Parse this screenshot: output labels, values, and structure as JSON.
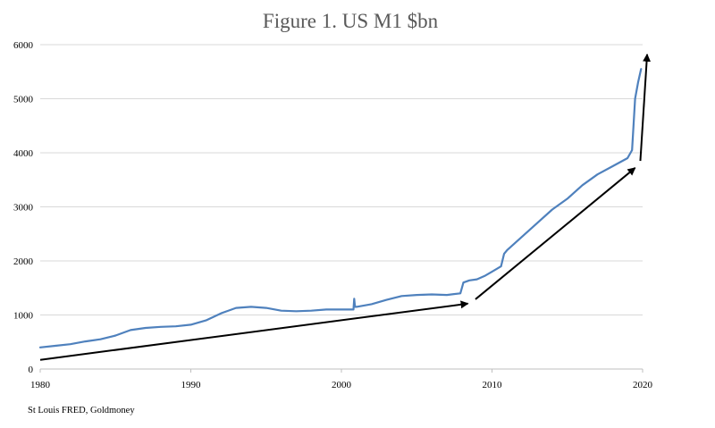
{
  "chart_data": {
    "type": "line",
    "title": "Figure 1. US M1 $bn",
    "source": "St Louis FRED, Goldmoney",
    "xlabel": "",
    "ylabel": "",
    "xlim": [
      1980,
      2020
    ],
    "ylim": [
      0,
      6000
    ],
    "x_ticks": [
      "1980",
      "1990",
      "2000",
      "2010",
      "2020"
    ],
    "y_ticks": [
      "0",
      "1000",
      "2000",
      "3000",
      "4000",
      "5000",
      "6000"
    ],
    "grid": true,
    "legend": "none",
    "series": [
      {
        "color": "#4f81bd",
        "x": [
          1980.0,
          1981.0,
          1982.0,
          1983.0,
          1984.0,
          1985.0,
          1986.0,
          1987.0,
          1988.0,
          1989.0,
          1990.0,
          1991.0,
          1992.0,
          1993.0,
          1994.0,
          1995.0,
          1996.0,
          1997.0,
          1998.0,
          1999.0,
          2000.0,
          2000.8,
          2000.85,
          2000.9,
          2001.0,
          2002.0,
          2003.0,
          2004.0,
          2005.0,
          2006.0,
          2007.0,
          2007.9,
          2008.1,
          2008.5,
          2009.0,
          2009.5,
          2010.0,
          2010.6,
          2010.8,
          2011.0,
          2012.0,
          2013.0,
          2014.0,
          2015.0,
          2016.0,
          2017.0,
          2018.0,
          2019.0,
          2019.3,
          2019.5,
          2019.7,
          2019.9
        ],
        "y": [
          400,
          430,
          460,
          510,
          550,
          620,
          720,
          760,
          780,
          790,
          820,
          900,
          1030,
          1130,
          1150,
          1130,
          1080,
          1070,
          1080,
          1100,
          1100,
          1100,
          1300,
          1150,
          1150,
          1200,
          1280,
          1350,
          1370,
          1380,
          1370,
          1400,
          1600,
          1640,
          1660,
          1720,
          1800,
          1900,
          2130,
          2200,
          2450,
          2700,
          2950,
          3150,
          3400,
          3600,
          3750,
          3900,
          4050,
          5000,
          5300,
          5550
        ]
      }
    ],
    "annotations": [
      {
        "type": "arrow",
        "x1": 1980,
        "y1": 170,
        "x2": 2008.4,
        "y2": 1210
      },
      {
        "type": "arrow",
        "x1": 2008.9,
        "y1": 1290,
        "x2": 2019.5,
        "y2": 3720
      },
      {
        "type": "arrow",
        "x1": 2019.85,
        "y1": 3850,
        "x2": 2020.3,
        "y2": 5820
      }
    ]
  }
}
